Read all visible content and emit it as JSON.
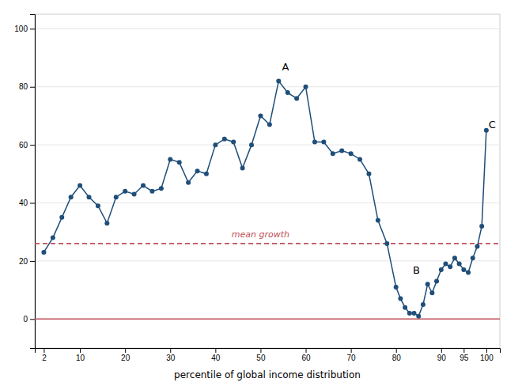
{
  "chart_data": {
    "type": "line",
    "xlabel": "percentile of global income distribution",
    "x": [
      2,
      4,
      6,
      8,
      10,
      12,
      14,
      16,
      18,
      20,
      22,
      24,
      26,
      28,
      30,
      32,
      34,
      36,
      38,
      40,
      42,
      44,
      46,
      48,
      50,
      52,
      54,
      56,
      58,
      60,
      62,
      64,
      66,
      68,
      70,
      72,
      74,
      76,
      78,
      80,
      81,
      82,
      83,
      84,
      85,
      86,
      87,
      88,
      89,
      90,
      91,
      92,
      93,
      94,
      95,
      96,
      97,
      98,
      99,
      100
    ],
    "values": [
      23,
      28,
      35,
      42,
      46,
      42,
      39,
      33,
      42,
      44,
      43,
      46,
      44,
      45,
      55,
      54,
      47,
      51,
      50,
      60,
      62,
      61,
      52,
      60,
      70,
      67,
      82,
      78,
      76,
      80,
      61,
      61,
      57,
      58,
      57,
      55,
      50,
      34,
      26,
      11,
      7,
      4,
      2,
      2,
      1,
      5,
      12,
      9,
      13,
      17,
      19,
      18,
      21,
      19,
      17,
      16,
      21,
      25,
      32,
      65
    ],
    "color": "#1f4e79",
    "marker": "circle",
    "xlim": [
      0,
      103
    ],
    "ylim": [
      -10,
      105
    ],
    "xticks": [
      2,
      10,
      20,
      30,
      40,
      50,
      60,
      70,
      80,
      90,
      95,
      100
    ],
    "yticks": [
      0,
      20,
      40,
      60,
      80,
      100
    ],
    "grid": true,
    "reference_lines": [
      {
        "value": 0,
        "color": "#c0505a",
        "line_style": "solid"
      },
      {
        "value": 26,
        "color": "#c0505a",
        "line_style": "dashed"
      }
    ],
    "annotations": [
      {
        "text": "mean growth",
        "x": 50,
        "y": 27.5,
        "color": "#c0505a"
      },
      {
        "text": "A",
        "x": 55.5,
        "y": 85
      },
      {
        "text": "B",
        "x": 84.5,
        "y": 15
      },
      {
        "text": "C",
        "x": 100.5,
        "y": 67
      }
    ]
  }
}
